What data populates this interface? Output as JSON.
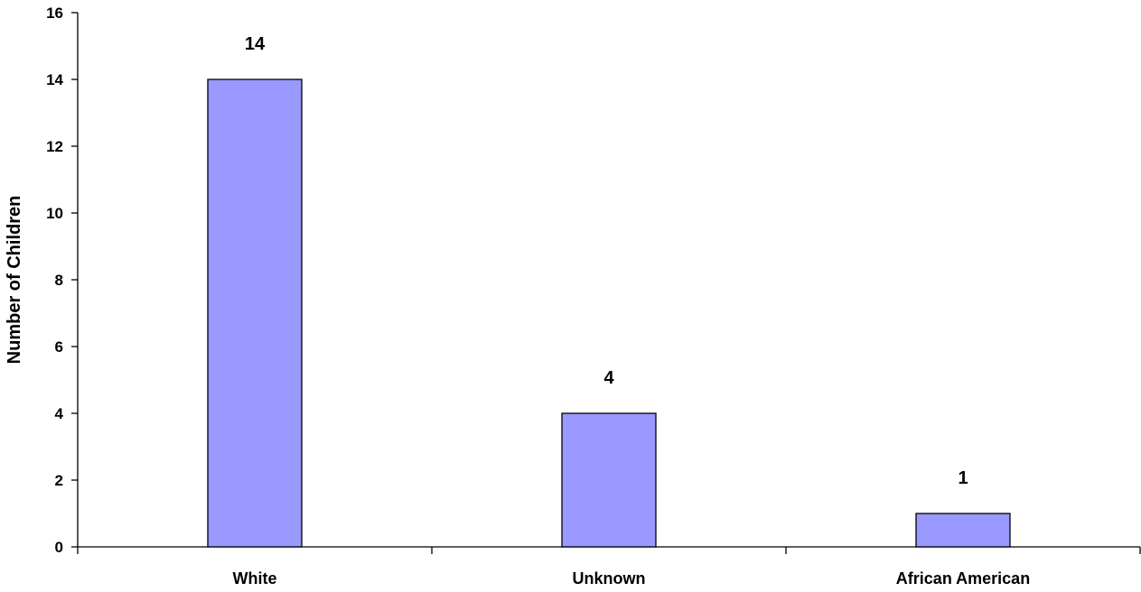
{
  "chart_data": {
    "type": "bar",
    "title": "",
    "xlabel": "",
    "ylabel": "Number of Children",
    "categories": [
      "White",
      "Unknown",
      "African American"
    ],
    "values": [
      14,
      4,
      1
    ],
    "ylim": [
      0,
      16
    ],
    "yticks": [
      0,
      2,
      4,
      6,
      8,
      10,
      12,
      14,
      16
    ],
    "grid": false,
    "legend": "none",
    "bar_color": "#9999ff",
    "bar_edge_color": "#000000"
  }
}
